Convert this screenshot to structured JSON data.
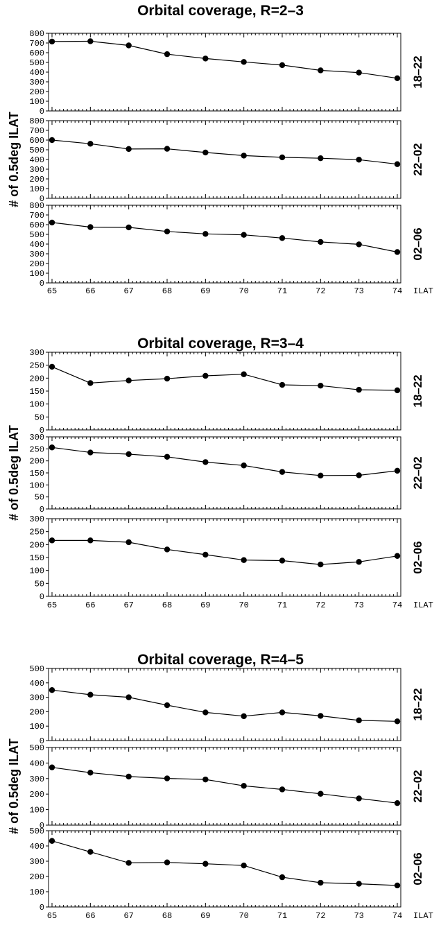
{
  "x_axis_label": "ILAT",
  "y_axis_label": "# of 0.5deg ILAT",
  "chart_data": [
    {
      "type": "line",
      "title": "Orbital coverage, R=2–3",
      "ylim": [
        0,
        800
      ],
      "yticks": [
        0,
        100,
        200,
        300,
        400,
        500,
        600,
        700,
        800
      ],
      "xlim": [
        65,
        74
      ],
      "x": [
        65,
        66,
        67,
        68,
        69,
        70,
        71,
        72,
        73,
        74
      ],
      "panels": [
        {
          "label": "18–22",
          "values": [
            715,
            718,
            675,
            585,
            540,
            505,
            472,
            418,
            395,
            337
          ]
        },
        {
          "label": "22–02",
          "values": [
            600,
            562,
            508,
            510,
            472,
            440,
            422,
            413,
            398,
            352
          ]
        },
        {
          "label": "02–06",
          "values": [
            622,
            575,
            572,
            530,
            505,
            495,
            462,
            422,
            397,
            318
          ]
        }
      ]
    },
    {
      "type": "line",
      "title": "Orbital coverage, R=3–4",
      "ylim": [
        0,
        300
      ],
      "yticks": [
        0,
        50,
        100,
        150,
        200,
        250,
        300
      ],
      "xlim": [
        65,
        74
      ],
      "x": [
        65,
        66,
        67,
        68,
        69,
        70,
        71,
        72,
        73,
        74
      ],
      "panels": [
        {
          "label": "18–22",
          "values": [
            244,
            181,
            191,
            198,
            209,
            215,
            174,
            171,
            155,
            153
          ]
        },
        {
          "label": "22–02",
          "values": [
            256,
            235,
            228,
            217,
            195,
            181,
            154,
            139,
            140,
            159
          ]
        },
        {
          "label": "02–06",
          "values": [
            216,
            216,
            209,
            181,
            161,
            140,
            138,
            123,
            133,
            156
          ]
        }
      ]
    },
    {
      "type": "line",
      "title": "Orbital coverage, R=4–5",
      "ylim": [
        0,
        500
      ],
      "yticks": [
        0,
        100,
        200,
        300,
        400,
        500
      ],
      "xlim": [
        65,
        74
      ],
      "x": [
        65,
        66,
        67,
        68,
        69,
        70,
        71,
        72,
        73,
        74
      ],
      "panels": [
        {
          "label": "18–22",
          "values": [
            350,
            318,
            300,
            245,
            195,
            169,
            195,
            171,
            140,
            133
          ]
        },
        {
          "label": "22–02",
          "values": [
            372,
            338,
            313,
            301,
            294,
            253,
            230,
            202,
            172,
            142
          ]
        },
        {
          "label": "02–06",
          "values": [
            433,
            361,
            289,
            292,
            283,
            272,
            195,
            159,
            152,
            141
          ]
        }
      ]
    }
  ]
}
